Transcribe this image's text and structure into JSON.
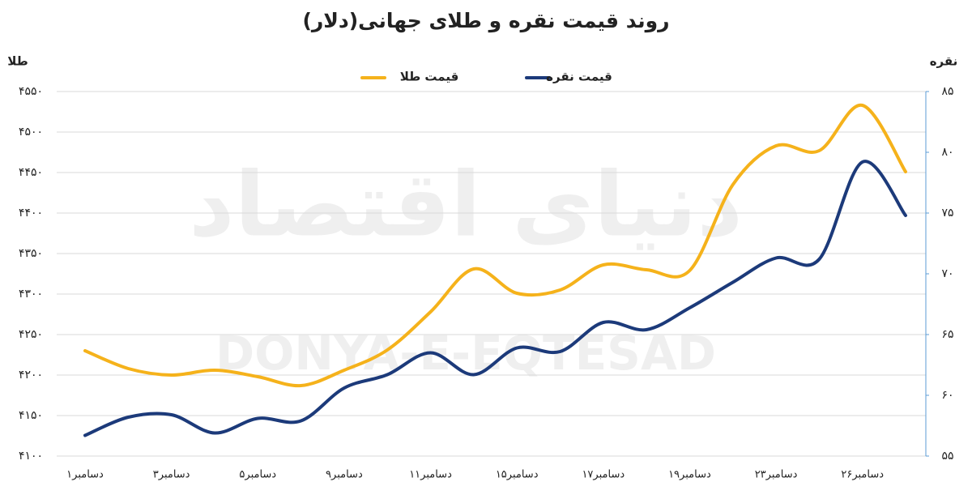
{
  "chart_data": {
    "type": "line",
    "title": "روند قیمت نقره و طلای جهانی(دلار)",
    "ylabel": "طلا",
    "y2label": "نقره",
    "watermark": "DONYA-E-EQTESAD",
    "watermark_logo": "دنیای اقتصاد",
    "categories": [
      "۱دسامبر",
      null,
      "۳دسامبر",
      null,
      "۵دسامبر",
      null,
      "۹دسامبر",
      null,
      "۱۱دسامبر",
      null,
      "۱۵دسامبر",
      null,
      "۱۷دسامبر",
      null,
      "۱۹دسامبر",
      null,
      "۲۳دسامبر",
      null,
      "۲۶دسامبر",
      null
    ],
    "series": [
      {
        "name": "قیمت طلا",
        "color": "#f5b21b",
        "axis": "y",
        "values": [
          4230,
          4208,
          4200,
          4206,
          4198,
          4187,
          4206,
          4231,
          4278,
          4331,
          4301,
          4305,
          4336,
          4330,
          4329,
          4435,
          4483,
          4477,
          4533,
          4451
        ]
      },
      {
        "name": "قیمت نقره",
        "color": "#1c3a7a",
        "axis": "y2",
        "values": [
          56.7,
          58.2,
          58.4,
          56.9,
          58.1,
          57.9,
          60.6,
          61.7,
          63.5,
          61.7,
          63.9,
          63.6,
          66.0,
          65.4,
          67.2,
          69.3,
          71.3,
          71.2,
          79.2,
          74.8
        ]
      }
    ],
    "ylim": [
      4100,
      4550
    ],
    "yticks": [
      {
        "value": 4100,
        "label": "۴۱۰۰"
      },
      {
        "value": 4150,
        "label": "۴۱۵۰"
      },
      {
        "value": 4200,
        "label": "۴۲۰۰"
      },
      {
        "value": 4250,
        "label": "۴۲۵۰"
      },
      {
        "value": 4300,
        "label": "۴۳۰۰"
      },
      {
        "value": 4350,
        "label": "۴۳۵۰"
      },
      {
        "value": 4400,
        "label": "۴۴۰۰"
      },
      {
        "value": 4450,
        "label": "۴۴۵۰"
      },
      {
        "value": 4500,
        "label": "۴۵۰۰"
      },
      {
        "value": 4550,
        "label": "۴۵۵۰"
      }
    ],
    "y2lim": [
      55,
      85
    ],
    "y2ticks": [
      {
        "value": 55,
        "label": "۵۵"
      },
      {
        "value": 60,
        "label": "۶۰"
      },
      {
        "value": 65,
        "label": "۶۵"
      },
      {
        "value": 70,
        "label": "۷۰"
      },
      {
        "value": 75,
        "label": "۷۵"
      },
      {
        "value": 80,
        "label": "۸۰"
      },
      {
        "value": 85,
        "label": "۸۵"
      }
    ],
    "grid": true
  }
}
